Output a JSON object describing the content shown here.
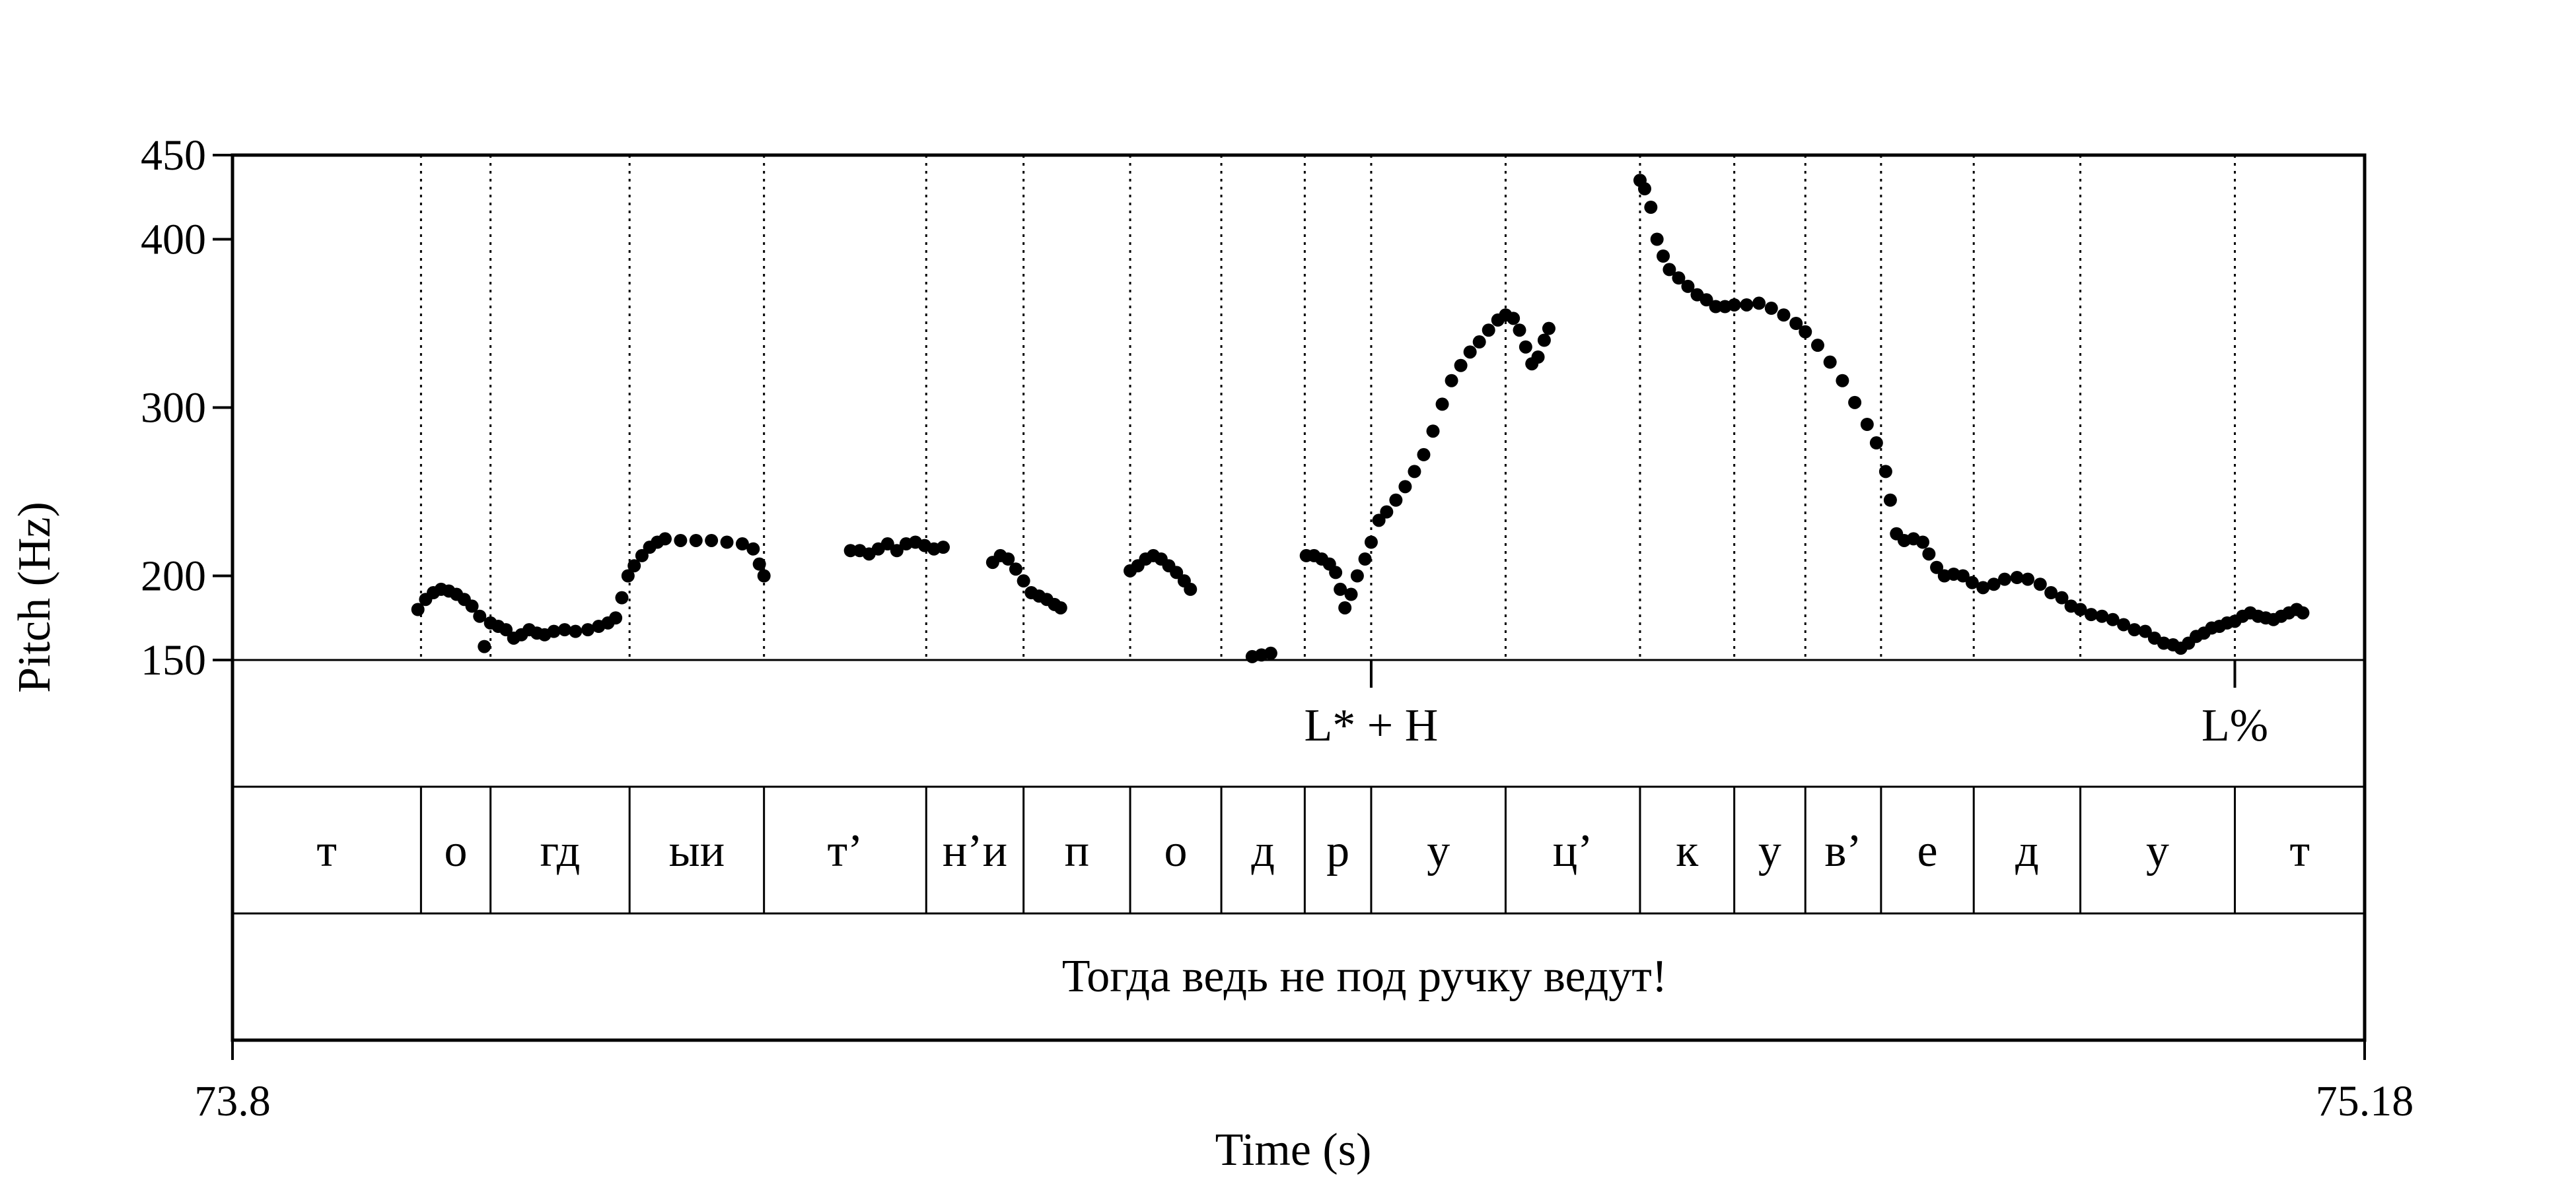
{
  "chart_data": {
    "type": "scatter",
    "ylabel": "Pitch (Hz)",
    "xlabel": "Time (s)",
    "xlim": [
      73.8,
      75.18
    ],
    "ylim": [
      150,
      450
    ],
    "x_tick_labels": [
      "73.8",
      "75.18"
    ],
    "y_ticks": [
      {
        "value": 150,
        "label": "150"
      },
      {
        "value": 200,
        "label": "200"
      },
      {
        "value": 300,
        "label": "300"
      },
      {
        "value": 400,
        "label": "400"
      },
      {
        "value": 450,
        "label": "450"
      }
    ],
    "segment_boundaries": [
      73.922,
      73.967,
      74.057,
      74.144,
      74.249,
      74.312,
      74.381,
      74.44,
      74.494,
      74.537,
      74.624,
      74.711,
      74.772,
      74.818,
      74.867,
      74.927,
      74.996,
      75.096
    ],
    "tone_tier": [
      {
        "time": 74.537,
        "label": "L* + H"
      },
      {
        "time": 75.096,
        "label": "L%"
      }
    ],
    "segment_tier": [
      "т",
      "о",
      "гд",
      "ыи",
      "т’",
      "н’и",
      "п",
      "о",
      "д",
      "р",
      "у",
      "ц’",
      "к",
      "у",
      "в’",
      "е",
      "д",
      "у",
      "т"
    ],
    "sentence": "Тогда ведь не под ручку ведут!",
    "series": [
      {
        "points": [
          [
            73.92,
            180
          ],
          [
            73.925,
            186
          ],
          [
            73.93,
            190
          ],
          [
            73.935,
            192
          ],
          [
            73.94,
            191
          ],
          [
            73.945,
            189
          ],
          [
            73.95,
            186
          ],
          [
            73.955,
            182
          ],
          [
            73.96,
            176
          ],
          [
            73.963,
            158
          ],
          [
            73.967,
            172
          ],
          [
            73.972,
            170
          ],
          [
            73.977,
            168
          ],
          [
            73.982,
            163
          ],
          [
            73.987,
            165
          ],
          [
            73.992,
            168
          ],
          [
            73.997,
            166
          ],
          [
            74.002,
            165
          ],
          [
            74.008,
            167
          ],
          [
            74.015,
            168
          ],
          [
            74.022,
            167
          ],
          [
            74.03,
            168
          ],
          [
            74.037,
            170
          ],
          [
            74.043,
            172
          ],
          [
            74.048,
            175
          ],
          [
            74.052,
            187
          ],
          [
            74.056,
            200
          ],
          [
            74.06,
            206
          ],
          [
            74.065,
            212
          ],
          [
            74.07,
            217
          ],
          [
            74.075,
            220
          ],
          [
            74.08,
            222
          ],
          [
            74.09,
            221
          ],
          [
            74.1,
            221
          ],
          [
            74.11,
            221
          ],
          [
            74.12,
            220
          ],
          [
            74.13,
            219
          ],
          [
            74.137,
            216
          ],
          [
            74.141,
            207
          ],
          [
            74.144,
            200
          ],
          [
            74.2,
            215
          ],
          [
            74.206,
            215
          ],
          [
            74.212,
            213
          ],
          [
            74.218,
            216
          ],
          [
            74.224,
            219
          ],
          [
            74.23,
            215
          ],
          [
            74.236,
            219
          ],
          [
            74.242,
            220
          ],
          [
            74.248,
            218
          ],
          [
            74.254,
            216
          ],
          [
            74.26,
            217
          ],
          [
            74.292,
            208
          ],
          [
            74.297,
            212
          ],
          [
            74.302,
            210
          ],
          [
            74.307,
            204
          ],
          [
            74.312,
            197
          ],
          [
            74.317,
            190
          ],
          [
            74.322,
            188
          ],
          [
            74.327,
            186
          ],
          [
            74.332,
            183
          ],
          [
            74.336,
            181
          ],
          [
            74.381,
            203
          ],
          [
            74.386,
            206
          ],
          [
            74.391,
            210
          ],
          [
            74.396,
            212
          ],
          [
            74.401,
            210
          ],
          [
            74.406,
            206
          ],
          [
            74.411,
            202
          ],
          [
            74.416,
            197
          ],
          [
            74.42,
            192
          ],
          [
            74.46,
            152
          ],
          [
            74.466,
            153
          ],
          [
            74.472,
            154
          ],
          [
            74.495,
            212
          ],
          [
            74.5,
            212
          ],
          [
            74.505,
            210
          ],
          [
            74.51,
            207
          ],
          [
            74.514,
            202
          ],
          [
            74.517,
            192
          ],
          [
            74.52,
            181
          ],
          [
            74.524,
            189
          ],
          [
            74.528,
            200
          ],
          [
            74.533,
            210
          ],
          [
            74.537,
            220
          ],
          [
            74.542,
            233
          ],
          [
            74.547,
            238
          ],
          [
            74.553,
            245
          ],
          [
            74.559,
            253
          ],
          [
            74.565,
            262
          ],
          [
            74.571,
            272
          ],
          [
            74.577,
            286
          ],
          [
            74.583,
            302
          ],
          [
            74.589,
            316
          ],
          [
            74.595,
            325
          ],
          [
            74.601,
            333
          ],
          [
            74.607,
            339
          ],
          [
            74.613,
            346
          ],
          [
            74.619,
            352
          ],
          [
            74.624,
            355
          ],
          [
            74.629,
            353
          ],
          [
            74.633,
            346
          ],
          [
            74.637,
            336
          ],
          [
            74.641,
            326
          ],
          [
            74.645,
            330
          ],
          [
            74.649,
            340
          ],
          [
            74.652,
            347
          ],
          [
            74.711,
            435
          ],
          [
            74.714,
            430
          ],
          [
            74.718,
            419
          ],
          [
            74.722,
            400
          ],
          [
            74.726,
            390
          ],
          [
            74.73,
            382
          ],
          [
            74.736,
            377
          ],
          [
            74.742,
            372
          ],
          [
            74.748,
            367
          ],
          [
            74.754,
            364
          ],
          [
            74.76,
            360
          ],
          [
            74.766,
            360
          ],
          [
            74.772,
            361
          ],
          [
            74.78,
            361
          ],
          [
            74.788,
            362
          ],
          [
            74.796,
            359
          ],
          [
            74.804,
            355
          ],
          [
            74.812,
            350
          ],
          [
            74.818,
            345
          ],
          [
            74.826,
            337
          ],
          [
            74.834,
            327
          ],
          [
            74.842,
            316
          ],
          [
            74.85,
            303
          ],
          [
            74.858,
            290
          ],
          [
            74.864,
            279
          ],
          [
            74.87,
            262
          ],
          [
            74.873,
            245
          ],
          [
            74.877,
            225
          ],
          [
            74.882,
            221
          ],
          [
            74.888,
            222
          ],
          [
            74.894,
            220
          ],
          [
            74.898,
            213
          ],
          [
            74.903,
            205
          ],
          [
            74.908,
            200
          ],
          [
            74.914,
            201
          ],
          [
            74.92,
            200
          ],
          [
            74.926,
            196
          ],
          [
            74.933,
            193
          ],
          [
            74.94,
            195
          ],
          [
            74.947,
            198
          ],
          [
            74.955,
            199
          ],
          [
            74.962,
            198
          ],
          [
            74.97,
            195
          ],
          [
            74.977,
            190
          ],
          [
            74.984,
            187
          ],
          [
            74.99,
            182
          ],
          [
            74.996,
            180
          ],
          [
            75.003,
            177
          ],
          [
            75.01,
            176
          ],
          [
            75.017,
            174
          ],
          [
            75.024,
            171
          ],
          [
            75.031,
            168
          ],
          [
            75.038,
            167
          ],
          [
            75.044,
            163
          ],
          [
            75.05,
            160
          ],
          [
            75.056,
            159
          ],
          [
            75.061,
            157
          ],
          [
            75.066,
            160
          ],
          [
            75.071,
            164
          ],
          [
            75.076,
            166
          ],
          [
            75.081,
            169
          ],
          [
            75.086,
            170
          ],
          [
            75.091,
            172
          ],
          [
            75.096,
            173
          ],
          [
            75.101,
            176
          ],
          [
            75.106,
            178
          ],
          [
            75.111,
            176
          ],
          [
            75.116,
            175
          ],
          [
            75.121,
            174
          ],
          [
            75.126,
            176
          ],
          [
            75.131,
            178
          ],
          [
            75.136,
            180
          ],
          [
            75.14,
            178
          ]
        ]
      }
    ]
  }
}
